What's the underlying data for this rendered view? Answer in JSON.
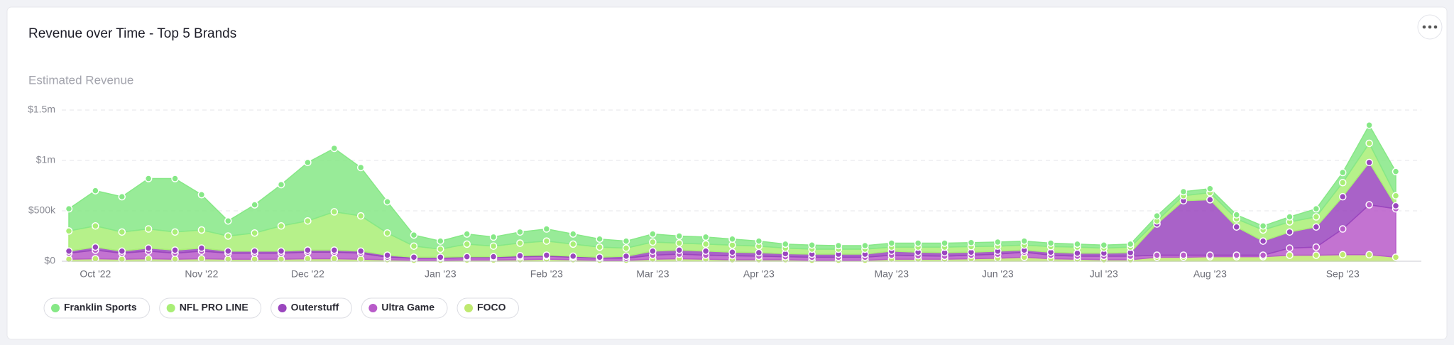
{
  "chart_data": {
    "type": "stacked-area",
    "title": "Revenue over Time - Top 5 Brands",
    "y_label": "Estimated Revenue",
    "categories": [
      null,
      "Oct '22",
      null,
      null,
      null,
      "Nov '22",
      null,
      null,
      null,
      "Dec '22",
      null,
      null,
      null,
      null,
      "Jan '23",
      null,
      null,
      null,
      "Feb '23",
      null,
      null,
      null,
      "Mar '23",
      null,
      null,
      null,
      "Apr '23",
      null,
      null,
      null,
      null,
      "May '23",
      null,
      null,
      null,
      "Jun '23",
      null,
      null,
      null,
      "Jul '23",
      null,
      null,
      null,
      "Aug '23",
      null,
      null,
      null,
      null,
      "Sep '23",
      null,
      null
    ],
    "ylim": [
      0,
      1500000
    ],
    "yticks": [
      {
        "value": 0,
        "label": "$0"
      },
      {
        "value": 500000,
        "label": "$500k"
      },
      {
        "value": 1000000,
        "label": "$1m"
      },
      {
        "value": 1500000,
        "label": "$1.5m"
      }
    ],
    "grid": true,
    "series": [
      {
        "name": "Franklin Sports",
        "color": "#86e886",
        "values": [
          220000,
          350000,
          350000,
          500000,
          530000,
          350000,
          150000,
          280000,
          410000,
          580000,
          630000,
          480000,
          310000,
          110000,
          80000,
          100000,
          90000,
          110000,
          120000,
          100000,
          80000,
          70000,
          80000,
          70000,
          70000,
          60000,
          50000,
          40000,
          40000,
          35000,
          35000,
          40000,
          40000,
          40000,
          40000,
          40000,
          40000,
          35000,
          30000,
          30000,
          30000,
          50000,
          40000,
          40000,
          40000,
          40000,
          50000,
          80000,
          100000,
          180000,
          240000
        ]
      },
      {
        "name": "NFL PRO LINE",
        "color": "#a9ee76",
        "values": [
          200000,
          210000,
          190000,
          190000,
          180000,
          180000,
          150000,
          180000,
          250000,
          290000,
          380000,
          350000,
          220000,
          110000,
          80000,
          125000,
          105000,
          125000,
          140000,
          120000,
          100000,
          80000,
          90000,
          70000,
          70000,
          70000,
          65000,
          55000,
          50000,
          50000,
          50000,
          40000,
          50000,
          55000,
          55000,
          50000,
          50000,
          55000,
          60000,
          50000,
          55000,
          30000,
          50000,
          70000,
          80000,
          110000,
          100000,
          100000,
          140000,
          190000,
          100000
        ]
      },
      {
        "name": "Outerstuff",
        "color": "#9a46be",
        "values": [
          20000,
          30000,
          20000,
          30000,
          30000,
          30000,
          20000,
          20000,
          20000,
          20000,
          20000,
          20000,
          20000,
          10000,
          10000,
          10000,
          10000,
          10000,
          10000,
          10000,
          10000,
          20000,
          40000,
          40000,
          40000,
          35000,
          35000,
          30000,
          30000,
          30000,
          30000,
          40000,
          35000,
          35000,
          30000,
          30000,
          20000,
          30000,
          30000,
          30000,
          35000,
          310000,
          540000,
          550000,
          280000,
          140000,
          160000,
          200000,
          320000,
          420000,
          30000
        ]
      },
      {
        "name": "Ultra Game",
        "color": "#b85bc9",
        "values": [
          60000,
          85000,
          60000,
          75000,
          60000,
          75000,
          60000,
          60000,
          60000,
          65000,
          65000,
          60000,
          25000,
          20000,
          20000,
          23000,
          23000,
          30000,
          30000,
          25000,
          20000,
          20000,
          40000,
          45000,
          40000,
          40000,
          35000,
          30000,
          30000,
          30000,
          30000,
          40000,
          35000,
          30000,
          35000,
          40000,
          50000,
          35000,
          30000,
          35000,
          35000,
          20000,
          20000,
          15000,
          15000,
          15000,
          70000,
          80000,
          255000,
          495000,
          480000
        ]
      },
      {
        "name": "FOCO",
        "color": "#bfe96f",
        "values": [
          20000,
          25000,
          20000,
          25000,
          20000,
          25000,
          20000,
          20000,
          20000,
          25000,
          25000,
          20000,
          15000,
          10000,
          10000,
          12000,
          12000,
          15000,
          20000,
          15000,
          10000,
          10000,
          20000,
          25000,
          20000,
          15000,
          15000,
          15000,
          10000,
          10000,
          10000,
          20000,
          20000,
          20000,
          25000,
          30000,
          40000,
          25000,
          20000,
          15000,
          15000,
          40000,
          40000,
          45000,
          45000,
          45000,
          60000,
          60000,
          65000,
          65000,
          40000
        ]
      }
    ]
  }
}
